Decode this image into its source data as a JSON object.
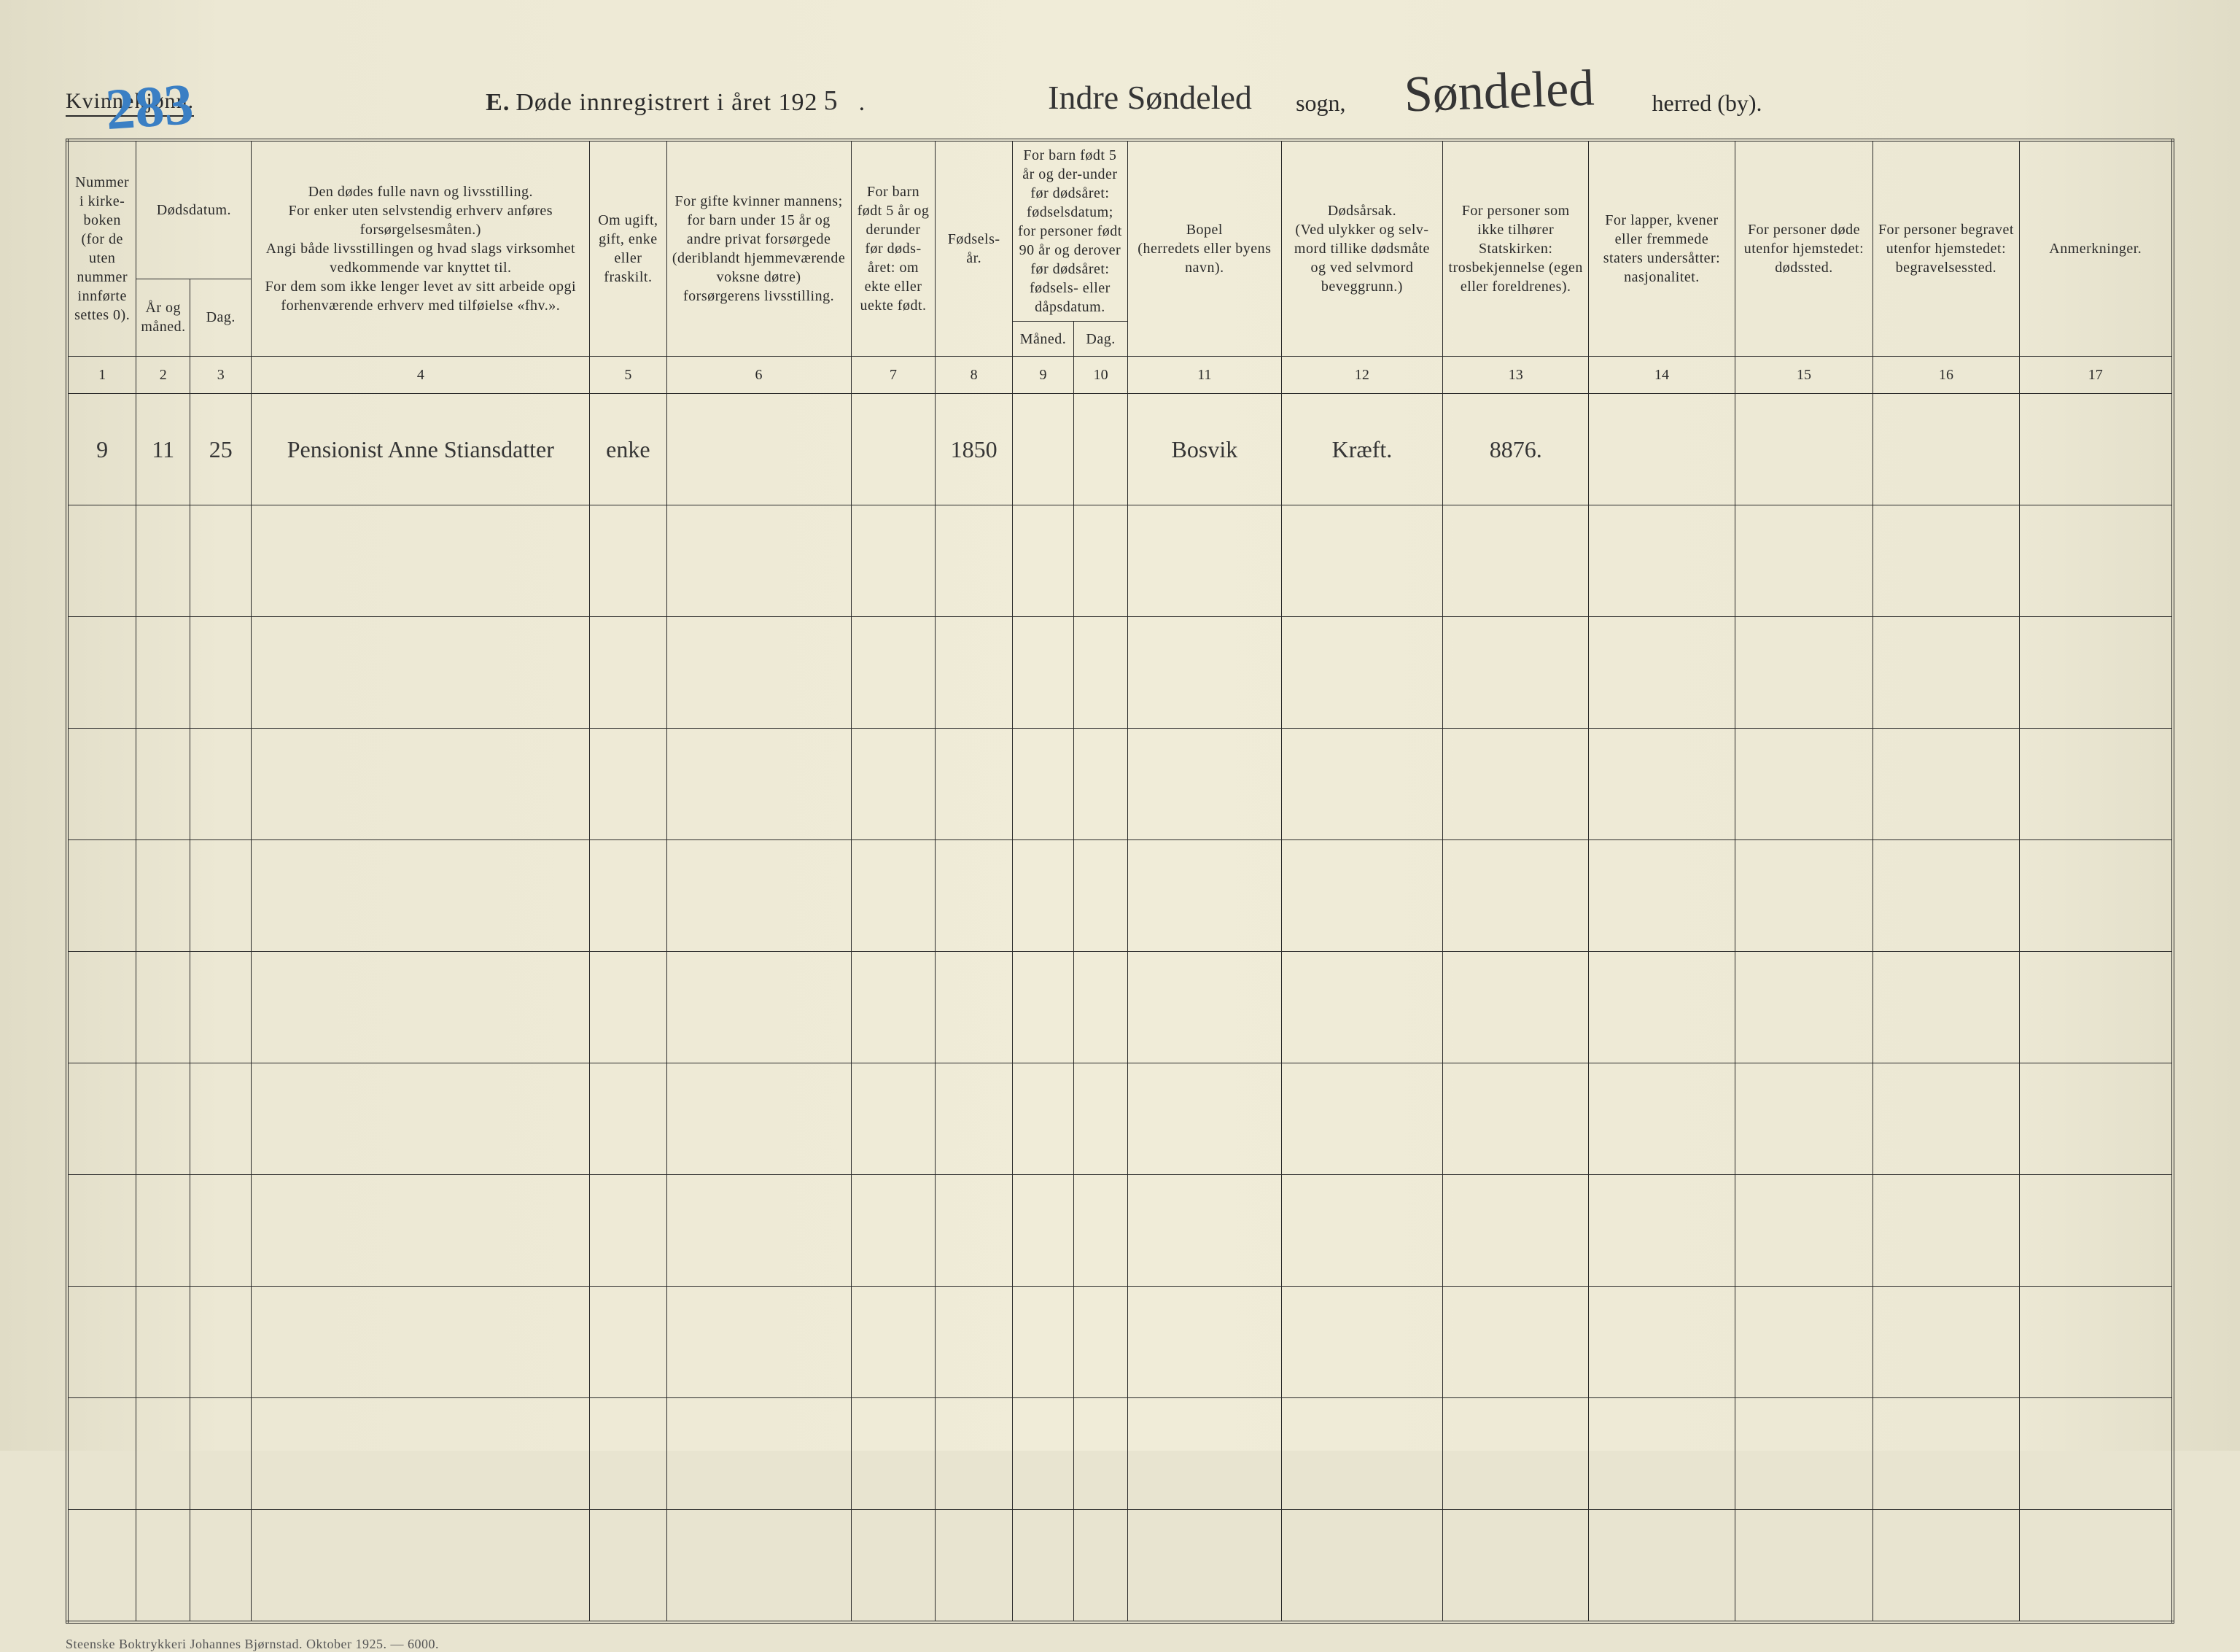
{
  "page": {
    "gender_label": "Kvinnekjønn.",
    "page_number": "283",
    "title_letter": "E.",
    "title_text": "Døde innregistrert i året 192",
    "year_suffix": "5",
    "period": ".",
    "sogn_value": "Indre Søndeled",
    "sogn_label": "sogn,",
    "herred_value": "Søndeled",
    "herred_label": "herred (by)."
  },
  "headers": {
    "c1": "Nummer i kirke-boken (for de uten nummer innførte settes 0).",
    "dodsdatum": "Dødsdatum.",
    "c2": "År og måned.",
    "c3": "Dag.",
    "c4": "Den dødes fulle navn og livsstilling.\nFor enker uten selvstendig erhverv anføres forsørgelsesmåten.)\nAngi både livsstillingen og hvad slags virksomhet vedkommende var knyttet til.\nFor dem som ikke lenger levet av sitt arbeide opgi forhenværende erhverv med tilføielse «fhv.».",
    "c5": "Om ugift, gift, enke eller fraskilt.",
    "c6": "For gifte kvinner mannens;\nfor barn under 15 år og andre privat forsørgede (deriblandt hjemmeværende voksne døtre)\nforsørgerens livsstilling.",
    "c7": "For barn født 5 år og derunder før døds-året: om ekte eller uekte født.",
    "c8": "Fødsels-år.",
    "c9_10_top": "For barn født 5 år og der-under før dødsåret: fødselsdatum; for personer født 90 år og derover før dødsåret: fødsels- eller dåpsdatum.",
    "c9": "Måned.",
    "c10": "Dag.",
    "c11": "Bopel\n(herredets eller byens navn).",
    "c12": "Dødsårsak.\n(Ved ulykker og selv-mord tillike dødsmåte og ved selvmord beveggrunn.)",
    "c13": "For personer som ikke tilhører Statskirken: trosbekjennelse (egen eller foreldrenes).",
    "c14": "For lapper, kvener eller fremmede staters undersåtter: nasjonalitet.",
    "c15": "For personer døde utenfor hjemstedet: dødssted.",
    "c16": "For personer begravet utenfor hjemstedet: begravelsessted.",
    "c17": "Anmerkninger."
  },
  "colnums": [
    "1",
    "2",
    "3",
    "4",
    "5",
    "6",
    "7",
    "8",
    "9",
    "10",
    "11",
    "12",
    "13",
    "14",
    "15",
    "16",
    "17"
  ],
  "rows": [
    {
      "c1": "9",
      "c2": "11",
      "c3": "25",
      "c4": "Pensionist Anne Stiansdatter",
      "c5": "enke",
      "c6": "",
      "c7": "",
      "c8": "1850",
      "c9": "",
      "c10": "",
      "c11": "Bosvik",
      "c12": "Kræft.",
      "c13": "8876.",
      "c14": "",
      "c15": "",
      "c16": "",
      "c17": ""
    }
  ],
  "blank_rows": 10,
  "footer": "Steenske Boktrykkeri Johannes Bjørnstad.   Oktober 1925. — 6000."
}
